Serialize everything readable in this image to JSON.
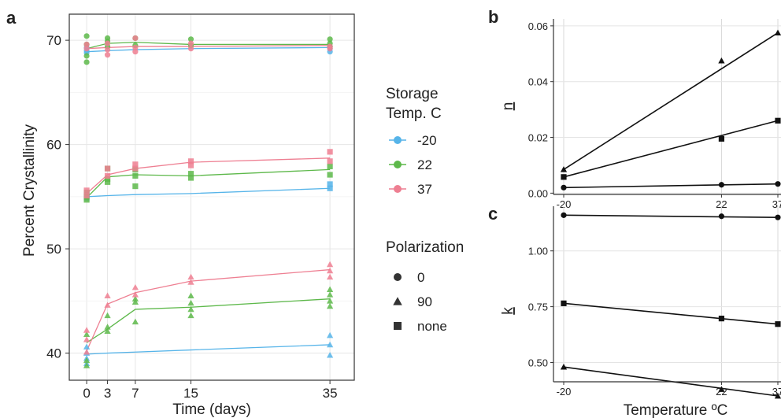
{
  "panels": {
    "a": {
      "label": "a"
    },
    "b": {
      "label": "b"
    },
    "c": {
      "label": "c"
    }
  },
  "legend": {
    "storage_title_line1": "Storage",
    "storage_title_line2": "Temp. C",
    "storage_items": [
      {
        "label": "-20",
        "color": "#56B4E9"
      },
      {
        "label": "22",
        "color": "#5DB84A"
      },
      {
        "label": "37",
        "color": "#EE7F92"
      }
    ],
    "polarization_title": "Polarization",
    "polarization_items": [
      {
        "label": "0",
        "shape": "circle"
      },
      {
        "label": "90",
        "shape": "triangle"
      },
      {
        "label": "none",
        "shape": "square"
      }
    ]
  },
  "chart_data": [
    {
      "panel": "a",
      "type": "scatter",
      "xlabel": "Time (days)",
      "ylabel": "Percent Crystallinity",
      "x_ticks": [
        0,
        3,
        7,
        15,
        35
      ],
      "y_ticks": [
        40,
        50,
        60,
        70
      ],
      "xlim": [
        -2.5,
        38.5
      ],
      "ylim": [
        37.4,
        72.5
      ],
      "grid": true,
      "legend_position": "right",
      "series": [
        {
          "temp": "-20",
          "polarization": "0",
          "x": [
            0,
            3,
            7,
            15,
            35
          ],
          "fit": [
            68.9,
            69.0,
            69.1,
            69.2,
            69.3
          ],
          "points": [
            [
              0,
              69.0
            ],
            [
              0,
              69.3
            ],
            [
              0,
              68.8
            ],
            [
              35,
              69.2
            ],
            [
              35,
              68.9
            ],
            [
              35,
              69.4
            ]
          ]
        },
        {
          "temp": "22",
          "polarization": "0",
          "x": [
            0,
            3,
            7,
            15,
            35
          ],
          "fit": [
            69.2,
            69.7,
            69.8,
            69.6,
            69.6
          ],
          "points": [
            [
              0,
              70.4
            ],
            [
              0,
              67.9
            ],
            [
              0,
              68.5
            ],
            [
              0,
              69.6
            ],
            [
              3,
              70.2
            ],
            [
              3,
              69.9
            ],
            [
              3,
              69.4
            ],
            [
              7,
              70.2
            ],
            [
              7,
              69.5
            ],
            [
              15,
              70.1
            ],
            [
              15,
              69.5
            ],
            [
              35,
              70.1
            ],
            [
              35,
              69.7
            ],
            [
              35,
              69.4
            ]
          ]
        },
        {
          "temp": "37",
          "polarization": "0",
          "x": [
            0,
            3,
            7,
            15,
            35
          ],
          "fit": [
            69.2,
            69.3,
            69.4,
            69.4,
            69.5
          ],
          "points": [
            [
              0,
              69.6
            ],
            [
              0,
              69.2
            ],
            [
              3,
              69.7
            ],
            [
              3,
              69.1
            ],
            [
              3,
              68.6
            ],
            [
              7,
              70.2
            ],
            [
              7,
              69.3
            ],
            [
              7,
              68.9
            ],
            [
              15,
              69.7
            ],
            [
              15,
              69.2
            ],
            [
              35,
              69.4
            ],
            [
              35,
              69.2
            ]
          ]
        },
        {
          "temp": "-20",
          "polarization": "none",
          "x": [
            0,
            3,
            7,
            15,
            35
          ],
          "fit": [
            55.0,
            55.1,
            55.2,
            55.3,
            55.8
          ],
          "points": [
            [
              0,
              55.2
            ],
            [
              0,
              54.9
            ],
            [
              0,
              55.1
            ],
            [
              35,
              55.8
            ],
            [
              35,
              56.2
            ]
          ]
        },
        {
          "temp": "22",
          "polarization": "none",
          "x": [
            0,
            3,
            7,
            15,
            35
          ],
          "fit": [
            54.9,
            56.9,
            57.1,
            57.0,
            57.6
          ],
          "points": [
            [
              0,
              54.7
            ],
            [
              0,
              55.0
            ],
            [
              0,
              55.4
            ],
            [
              3,
              57.7
            ],
            [
              3,
              56.7
            ],
            [
              3,
              56.4
            ],
            [
              7,
              57.6
            ],
            [
              7,
              57.0
            ],
            [
              7,
              56.0
            ],
            [
              15,
              57.2
            ],
            [
              15,
              56.8
            ],
            [
              35,
              57.9
            ],
            [
              35,
              57.1
            ]
          ]
        },
        {
          "temp": "37",
          "polarization": "none",
          "x": [
            0,
            3,
            7,
            15,
            35
          ],
          "fit": [
            55.3,
            57.1,
            57.7,
            58.3,
            58.7
          ],
          "points": [
            [
              0,
              55.6
            ],
            [
              0,
              55.1
            ],
            [
              3,
              57.7
            ],
            [
              3,
              57.0
            ],
            [
              7,
              58.1
            ],
            [
              7,
              57.7
            ],
            [
              15,
              58.4
            ],
            [
              15,
              58.0
            ],
            [
              35,
              59.3
            ],
            [
              35,
              58.4
            ]
          ]
        },
        {
          "temp": "-20",
          "polarization": "90",
          "x": [
            0,
            3,
            7,
            15,
            35
          ],
          "fit": [
            39.9,
            40.0,
            40.1,
            40.3,
            40.8
          ],
          "points": [
            [
              0,
              40.6
            ],
            [
              0,
              40.0
            ],
            [
              0,
              39.5
            ],
            [
              0,
              39.0
            ],
            [
              35,
              41.7
            ],
            [
              35,
              40.8
            ],
            [
              35,
              39.8
            ]
          ]
        },
        {
          "temp": "22",
          "polarization": "90",
          "x": [
            0,
            3,
            7,
            15,
            35
          ],
          "fit": [
            41.0,
            42.3,
            44.2,
            44.4,
            45.2
          ],
          "points": [
            [
              0,
              41.8
            ],
            [
              0,
              39.3
            ],
            [
              0,
              38.8
            ],
            [
              3,
              43.6
            ],
            [
              3,
              42.5
            ],
            [
              3,
              42.1
            ],
            [
              7,
              45.2
            ],
            [
              7,
              44.9
            ],
            [
              7,
              43.0
            ],
            [
              15,
              45.5
            ],
            [
              15,
              44.8
            ],
            [
              15,
              44.2
            ],
            [
              15,
              43.6
            ],
            [
              35,
              46.1
            ],
            [
              35,
              45.6
            ],
            [
              35,
              45.0
            ],
            [
              35,
              44.5
            ]
          ]
        },
        {
          "temp": "37",
          "polarization": "90",
          "x": [
            0,
            3,
            7,
            15,
            35
          ],
          "fit": [
            40.2,
            44.7,
            45.8,
            46.9,
            48.0
          ],
          "points": [
            [
              0,
              42.2
            ],
            [
              0,
              41.3
            ],
            [
              0,
              40.1
            ],
            [
              3,
              45.5
            ],
            [
              3,
              44.6
            ],
            [
              7,
              46.3
            ],
            [
              7,
              45.6
            ],
            [
              15,
              47.3
            ],
            [
              15,
              46.8
            ],
            [
              35,
              48.5
            ],
            [
              35,
              47.9
            ],
            [
              35,
              47.3
            ]
          ]
        }
      ]
    },
    {
      "panel": "b",
      "type": "line",
      "xlabel": "",
      "ylabel": "n",
      "categories": [
        "-20",
        "22",
        "37"
      ],
      "x": [
        -20,
        22,
        37
      ],
      "y_ticks": [
        0.0,
        0.02,
        0.04,
        0.06
      ],
      "y_tick_labels": [
        "0.00",
        "0.02",
        "0.04",
        "0.06"
      ],
      "ylim": [
        -0.003,
        0.0625
      ],
      "grid": true,
      "series": [
        {
          "shape": "triangle",
          "values": [
            0.0085,
            0.0475,
            0.0575
          ]
        },
        {
          "shape": "square",
          "values": [
            0.0058,
            0.0195,
            0.026
          ]
        },
        {
          "shape": "circle",
          "values": [
            0.002,
            0.003,
            0.0033
          ]
        }
      ]
    },
    {
      "panel": "c",
      "type": "line",
      "xlabel": "Temperature ºC",
      "ylabel": "k",
      "categories": [
        "-20",
        "22",
        "37"
      ],
      "x": [
        -20,
        22,
        37
      ],
      "y_ticks": [
        0.5,
        0.75,
        1.0
      ],
      "y_tick_labels": [
        "0.50",
        "0.75",
        "1.00"
      ],
      "ylim": [
        0.41,
        1.2
      ],
      "grid": true,
      "series": [
        {
          "shape": "circle",
          "values": [
            1.16,
            1.155,
            1.15
          ]
        },
        {
          "shape": "square",
          "values": [
            0.765,
            0.697,
            0.672
          ]
        },
        {
          "shape": "triangle",
          "values": [
            0.48,
            0.38,
            0.35
          ]
        }
      ]
    }
  ]
}
